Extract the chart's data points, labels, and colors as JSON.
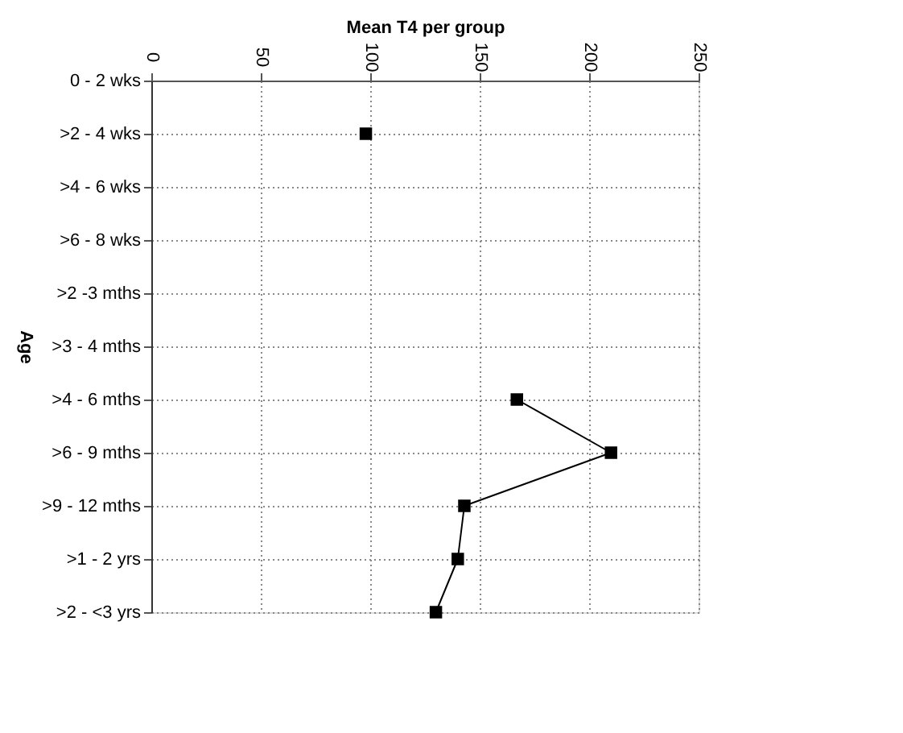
{
  "chart_data": {
    "type": "line",
    "orientation": "horizontal",
    "xlabel": "Mean T4 per group",
    "ylabel": "Age",
    "categories": [
      "0 - 2 wks",
      ">2 - 4 wks",
      ">4 - 6 wks",
      ">6 - 8 wks",
      ">2 -3 mths",
      ">3 - 4 mths",
      ">4 - 6 mths",
      ">6 - 9 mths",
      ">9 - 12 mths",
      ">1 - 2 yrs",
      ">2 - <3 yrs"
    ],
    "series": [
      {
        "color": "#000000",
        "values": [
          null,
          98,
          null,
          null,
          null,
          null,
          167,
          210,
          143,
          140,
          130
        ]
      }
    ],
    "xlim": [
      0,
      250
    ],
    "xticks": [
      0,
      50,
      100,
      150,
      200,
      250
    ],
    "grid": true,
    "marker": "square",
    "line_style": "solid"
  }
}
